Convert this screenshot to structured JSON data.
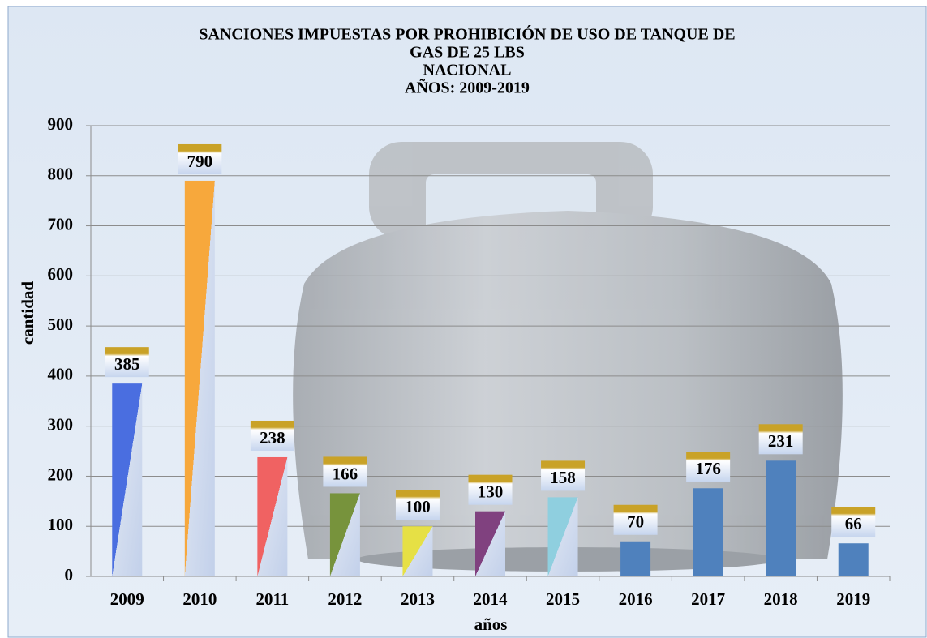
{
  "chart_data": {
    "type": "bar",
    "title": [
      "SANCIONES IMPUESTAS POR PROHIBICIÓN DE USO DE TANQUE DE",
      "GAS DE 25 LBS",
      "NACIONAL",
      "AÑOS: 2009-2019"
    ],
    "x_label": "años",
    "y_label": "cantidad",
    "categories": [
      "2009",
      "2010",
      "2011",
      "2012",
      "2013",
      "2014",
      "2015",
      "2016",
      "2017",
      "2018",
      "2019"
    ],
    "values": [
      385,
      790,
      238,
      166,
      100,
      130,
      158,
      70,
      176,
      231,
      66
    ],
    "colors": [
      "#4a6ee0",
      "#f7a83c",
      "#f06262",
      "#77933c",
      "#e6e045",
      "#80417f",
      "#8fcfdf",
      "#4f81bd",
      "#4f81bd",
      "#4f81bd",
      "#4f81bd"
    ],
    "diagonal": [
      true,
      true,
      true,
      true,
      true,
      true,
      true,
      false,
      false,
      false,
      false
    ],
    "ylim": [
      0,
      900
    ],
    "yticks": [
      0,
      100,
      200,
      300,
      400,
      500,
      600,
      700,
      800,
      900
    ],
    "grid": true
  }
}
